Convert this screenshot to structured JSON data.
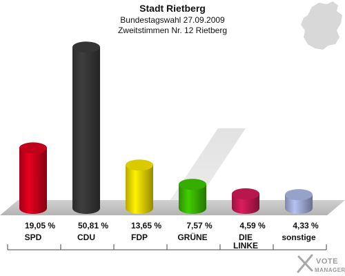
{
  "chart_data": {
    "type": "bar",
    "title": "Stadt Rietberg",
    "subtitle_lines": [
      "Bundestagswahl 27.09.2009",
      "Zweitstimmen Nr. 12 Rietberg"
    ],
    "categories": [
      "SPD",
      "CDU",
      "FDP",
      "GRÜNE",
      "DIE LINKE",
      "sonstige"
    ],
    "category_lines": [
      [
        "SPD"
      ],
      [
        "CDU"
      ],
      [
        "FDP"
      ],
      [
        "GRÜNE"
      ],
      [
        "DIE",
        "LINKE"
      ],
      [
        "sonstige"
      ]
    ],
    "values": [
      19.05,
      50.81,
      13.65,
      7.57,
      4.59,
      4.33
    ],
    "value_labels": [
      "19,05 %",
      "50,81 %",
      "13,65 %",
      "7,57 %",
      "4,59 %",
      "4,33 %"
    ],
    "colors": [
      "#d6001c",
      "#3a3a3a",
      "#f2e000",
      "#3cbf00",
      "#cc1a55",
      "#a8b4e0"
    ],
    "ylim": [
      0,
      55
    ],
    "grid": false,
    "legend": "none"
  },
  "watermark": {
    "line1": "VOTE",
    "line2": "MANAGER"
  }
}
